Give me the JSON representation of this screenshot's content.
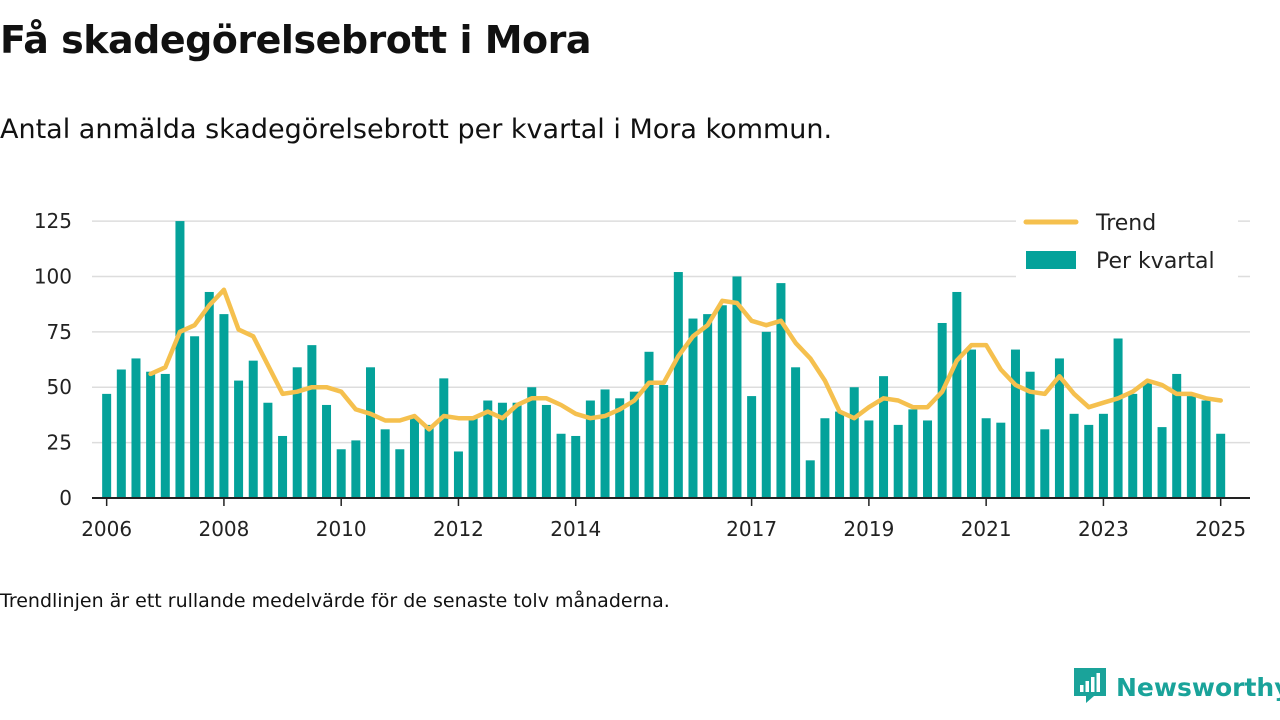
{
  "title": "Få skadegörelsebrott i Mora",
  "subtitle": "Antal anmälda skadegörelsebrott per kvartal i Mora kommun.",
  "note": "Trendlinjen är ett rullande medelvärde för de senaste tolv månaderna.",
  "brand": {
    "name": "Newsworthy",
    "icon": "newsworthy-logo-icon"
  },
  "colors": {
    "bars": "#04a29a",
    "trend": "#f5c04e",
    "grid": "#dddddd",
    "axis": "#222222"
  },
  "chart_data": {
    "type": "bar",
    "ylim": [
      0,
      130
    ],
    "yticks": [
      0,
      25,
      50,
      75,
      100,
      125
    ],
    "x_range": [
      2005.75,
      2025.5
    ],
    "xticks": [
      2006,
      2008,
      2010,
      2012,
      2014,
      2017,
      2019,
      2021,
      2023,
      2025
    ],
    "grid": true,
    "legend_position": "top-right",
    "series": [
      {
        "name": "Per kvartal",
        "type": "bar",
        "x": [
          2006.0,
          2006.25,
          2006.5,
          2006.75,
          2007.0,
          2007.25,
          2007.5,
          2007.75,
          2008.0,
          2008.25,
          2008.5,
          2008.75,
          2009.0,
          2009.25,
          2009.5,
          2009.75,
          2010.0,
          2010.25,
          2010.5,
          2010.75,
          2011.0,
          2011.25,
          2011.5,
          2011.75,
          2012.0,
          2012.25,
          2012.5,
          2012.75,
          2013.0,
          2013.25,
          2013.5,
          2013.75,
          2014.0,
          2014.25,
          2014.5,
          2014.75,
          2015.0,
          2015.25,
          2015.5,
          2015.75,
          2016.0,
          2016.25,
          2016.5,
          2016.75,
          2017.0,
          2017.25,
          2017.5,
          2017.75,
          2018.0,
          2018.25,
          2018.5,
          2018.75,
          2019.0,
          2019.25,
          2019.5,
          2019.75,
          2020.0,
          2020.25,
          2020.5,
          2020.75,
          2021.0,
          2021.25,
          2021.5,
          2021.75,
          2022.0,
          2022.25,
          2022.5,
          2022.75,
          2023.0,
          2023.25,
          2023.5,
          2023.75,
          2024.0,
          2024.25,
          2024.5,
          2024.75,
          2025.0
        ],
        "values": [
          47,
          58,
          63,
          57,
          56,
          125,
          73,
          93,
          83,
          53,
          62,
          43,
          28,
          59,
          69,
          42,
          22,
          26,
          59,
          31,
          22,
          36,
          33,
          54,
          21,
          36,
          44,
          43,
          43,
          50,
          42,
          29,
          28,
          44,
          49,
          45,
          48,
          66,
          51,
          102,
          81,
          83,
          87,
          100,
          46,
          75,
          97,
          59,
          17,
          36,
          39,
          50,
          35,
          55,
          33,
          40,
          35,
          79,
          93,
          67,
          36,
          34,
          67,
          57,
          31,
          63,
          38,
          33,
          38,
          72,
          47,
          52,
          32,
          56,
          46,
          44,
          29
        ]
      },
      {
        "name": "Trend",
        "type": "line",
        "x": [
          2006.75,
          2007.0,
          2007.25,
          2007.5,
          2007.75,
          2008.0,
          2008.25,
          2008.5,
          2008.75,
          2009.0,
          2009.25,
          2009.5,
          2009.75,
          2010.0,
          2010.25,
          2010.5,
          2010.75,
          2011.0,
          2011.25,
          2011.5,
          2011.75,
          2012.0,
          2012.25,
          2012.5,
          2012.75,
          2013.0,
          2013.25,
          2013.5,
          2013.75,
          2014.0,
          2014.25,
          2014.5,
          2014.75,
          2015.0,
          2015.25,
          2015.5,
          2015.75,
          2016.0,
          2016.25,
          2016.5,
          2016.75,
          2017.0,
          2017.25,
          2017.5,
          2017.75,
          2018.0,
          2018.25,
          2018.5,
          2018.75,
          2019.0,
          2019.25,
          2019.5,
          2019.75,
          2020.0,
          2020.25,
          2020.5,
          2020.75,
          2021.0,
          2021.25,
          2021.5,
          2021.75,
          2022.0,
          2022.25,
          2022.5,
          2022.75,
          2023.0,
          2023.25,
          2023.5,
          2023.75,
          2024.0,
          2024.25,
          2024.5,
          2024.75,
          2025.0
        ],
        "values": [
          56,
          59,
          75,
          78,
          87,
          94,
          76,
          73,
          60,
          47,
          48,
          50,
          50,
          48,
          40,
          38,
          35,
          35,
          37,
          31,
          37,
          36,
          36,
          39,
          36,
          42,
          45,
          45,
          42,
          38,
          36,
          37,
          40,
          44,
          52,
          52,
          64,
          73,
          78,
          89,
          88,
          80,
          78,
          80,
          70,
          63,
          53,
          39,
          36,
          41,
          45,
          44,
          41,
          41,
          48,
          62,
          69,
          69,
          58,
          51,
          48,
          47,
          55,
          47,
          41,
          43,
          45,
          48,
          53,
          51,
          47,
          47,
          45,
          44
        ]
      }
    ]
  }
}
